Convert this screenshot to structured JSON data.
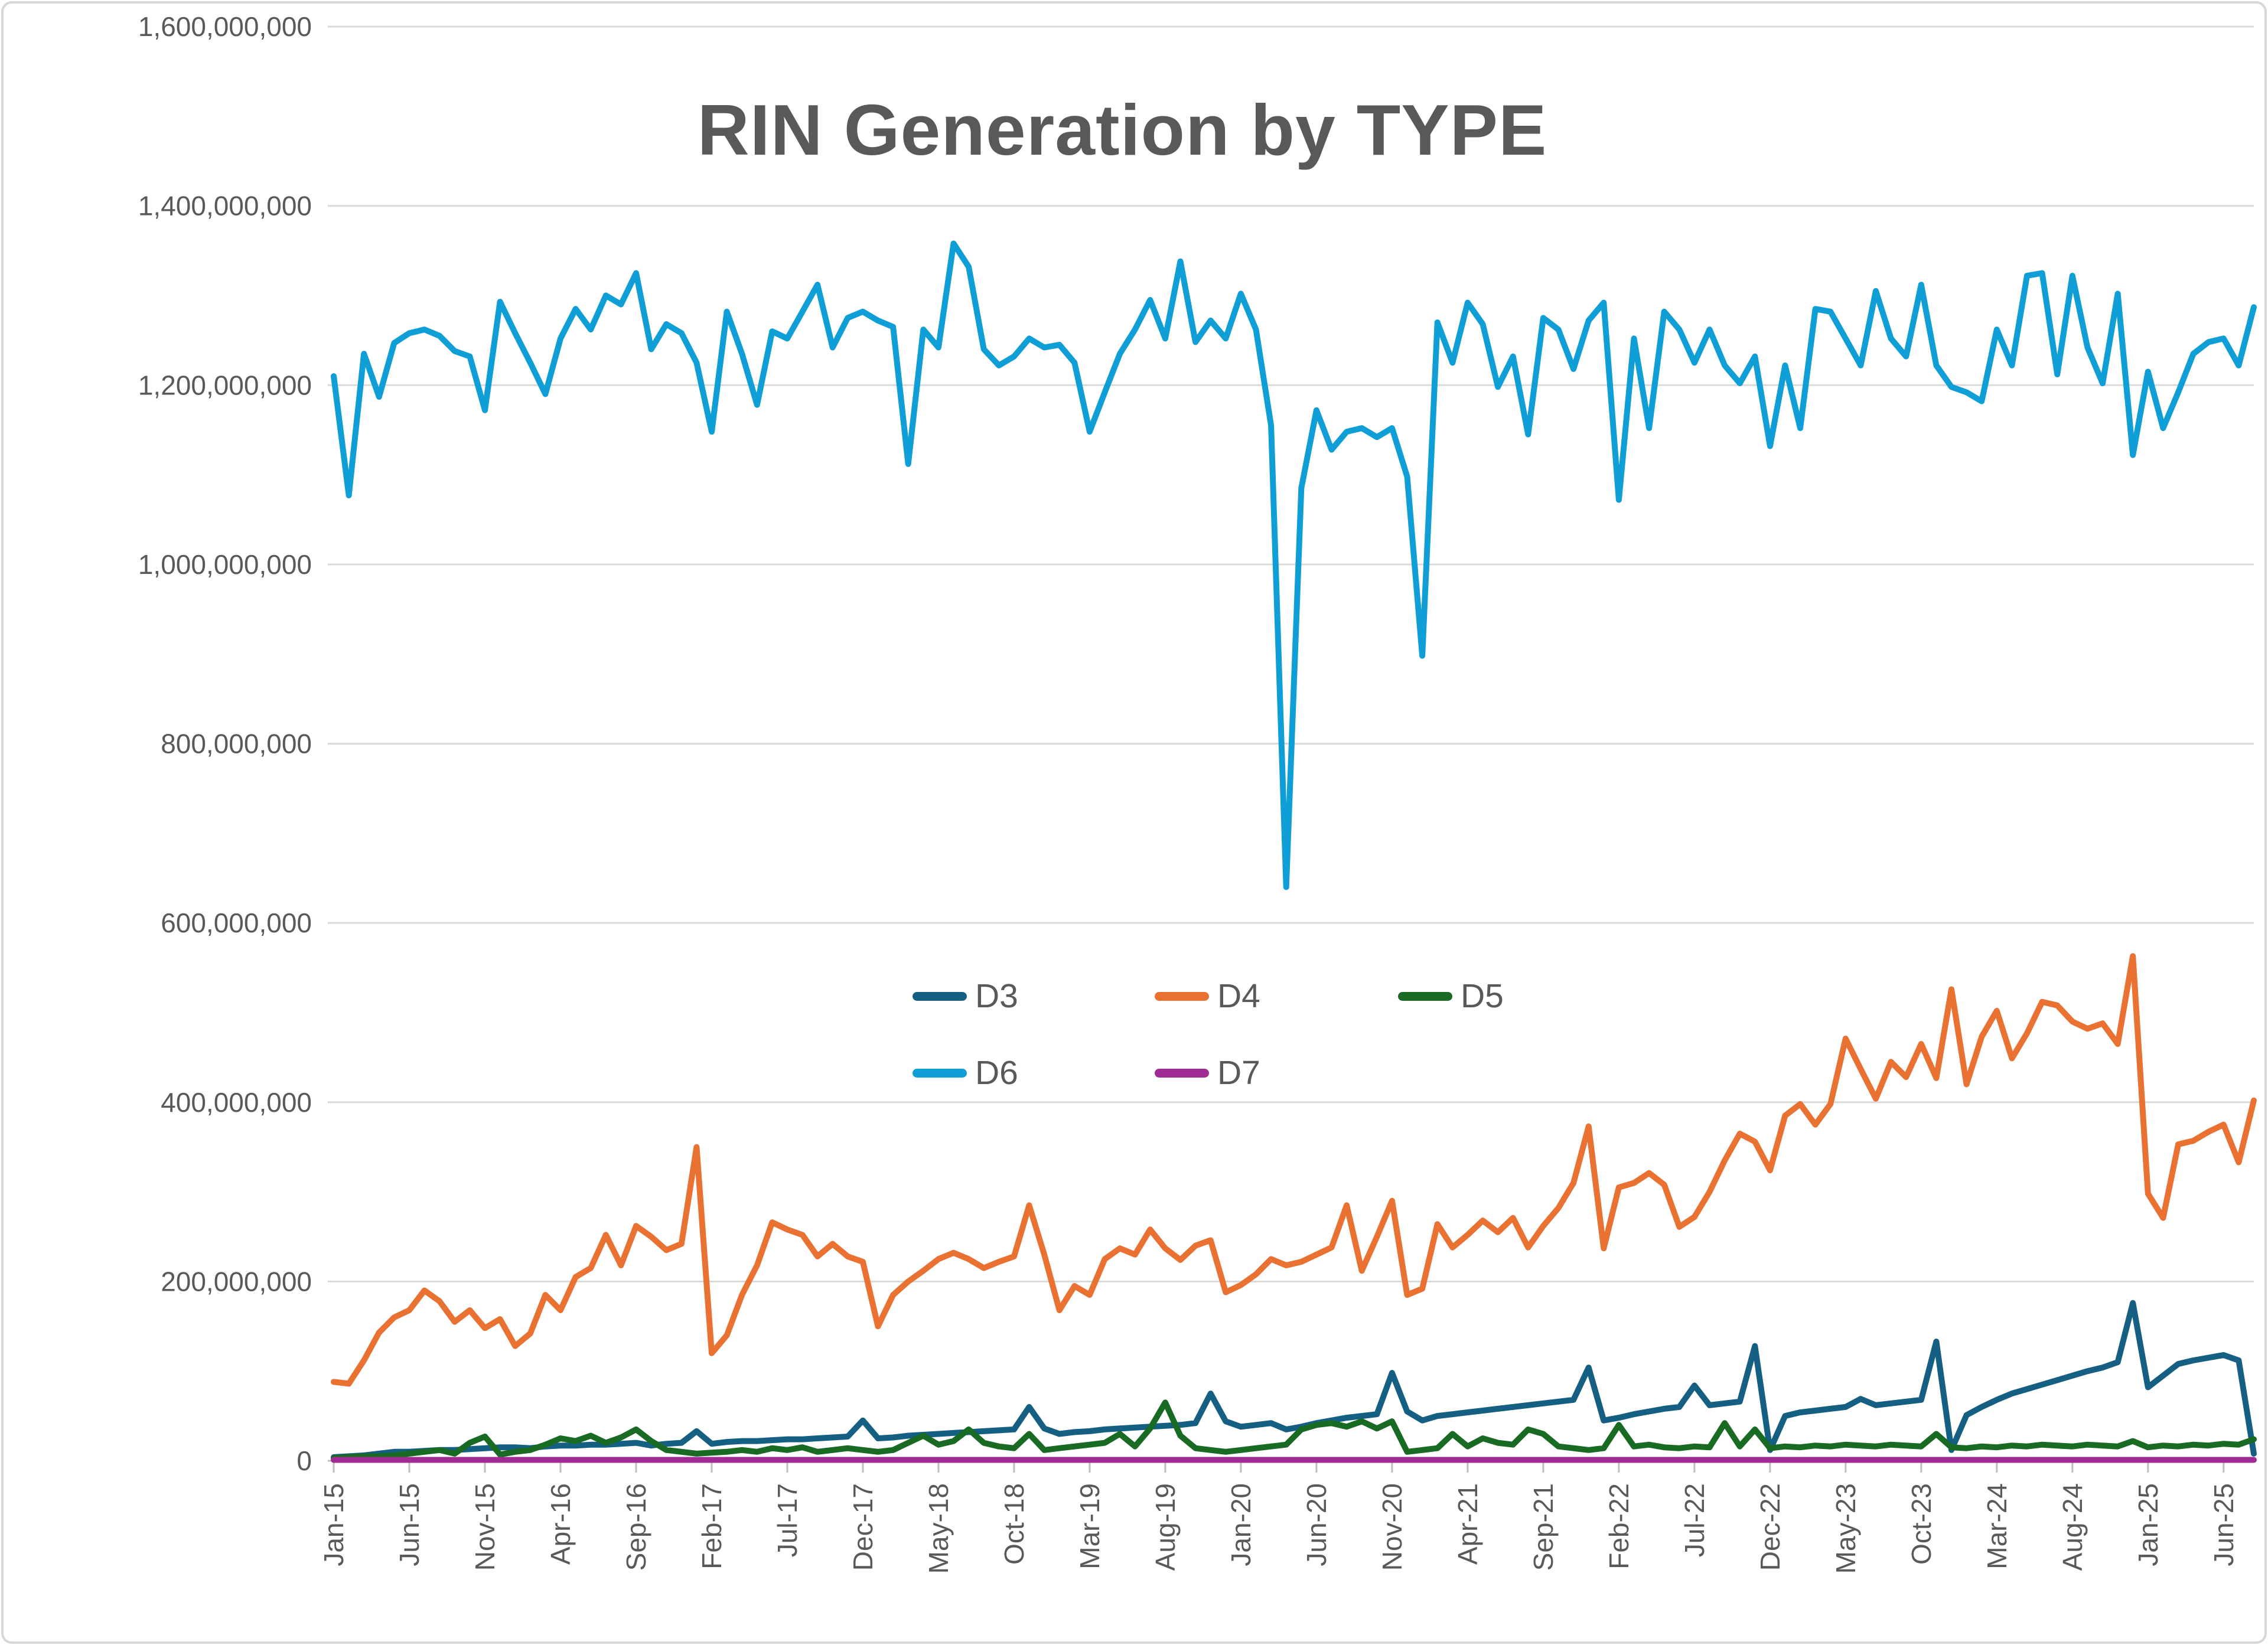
{
  "chart_data": {
    "type": "line",
    "title": "RIN Generation by TYPE",
    "unit_multiplier": 1000000,
    "y_axis": {
      "min": 0,
      "max": 1600000000,
      "tick_interval": 200000000,
      "tick_labels": [
        "0",
        "200,000,000",
        "400,000,000",
        "600,000,000",
        "800,000,000",
        "1,000,000,000",
        "1,200,000,000",
        "1,400,000,000",
        "1,600,000,000"
      ],
      "grid": true
    },
    "x_axis": {
      "first_month": "Jan-15",
      "last_month": "Aug-25",
      "months_total": 128,
      "tick_every": 5,
      "tick_labels": [
        "Jan-15",
        "Jun-15",
        "Nov-15",
        "Apr-16",
        "Sep-16",
        "Feb-17",
        "Jul-17",
        "Dec-17",
        "May-18",
        "Oct-18",
        "Mar-19",
        "Aug-19",
        "Jan-20",
        "Jun-20",
        "Nov-20",
        "Apr-21",
        "Sep-21",
        "Feb-22",
        "Jul-22",
        "Dec-22",
        "May-23",
        "Oct-23",
        "Mar-24",
        "Aug-24",
        "Jan-25",
        "Jun-25"
      ]
    },
    "legend": {
      "position": "center-middle",
      "rows": [
        [
          "D3",
          "D4",
          "D5"
        ],
        [
          "D6",
          "D7"
        ]
      ]
    },
    "series": [
      {
        "name": "D3",
        "color": "#156082",
        "values_millions": [
          4,
          5,
          6,
          8,
          10,
          10,
          11,
          12,
          12,
          13,
          14,
          15,
          15,
          14,
          16,
          17,
          17,
          18,
          18,
          19,
          20,
          17,
          19,
          20,
          33,
          19,
          21,
          22,
          22,
          23,
          24,
          24,
          25,
          26,
          27,
          45,
          25,
          26,
          28,
          29,
          30,
          31,
          32,
          33,
          34,
          35,
          60,
          36,
          30,
          32,
          33,
          35,
          36,
          37,
          38,
          39,
          40,
          42,
          75,
          44,
          38,
          40,
          42,
          35,
          38,
          42,
          45,
          48,
          50,
          52,
          98,
          55,
          45,
          50,
          52,
          54,
          56,
          58,
          60,
          62,
          64,
          66,
          68,
          104,
          45,
          48,
          52,
          55,
          58,
          60,
          84,
          62,
          64,
          66,
          128,
          12,
          50,
          54,
          56,
          58,
          60,
          69,
          62,
          64,
          66,
          68,
          133,
          12,
          51,
          60,
          68,
          75,
          80,
          85,
          90,
          95,
          100,
          104,
          110,
          176,
          82,
          95,
          108,
          112,
          115,
          118,
          112,
          8
        ]
      },
      {
        "name": "D4",
        "color": "#E97132",
        "values_millions": [
          88,
          86,
          112,
          143,
          160,
          168,
          190,
          178,
          155,
          168,
          148,
          158,
          128,
          142,
          185,
          168,
          205,
          215,
          252,
          218,
          262,
          250,
          235,
          242,
          350,
          120,
          140,
          185,
          218,
          266,
          258,
          252,
          228,
          242,
          228,
          222,
          150,
          185,
          200,
          212,
          225,
          232,
          225,
          215,
          222,
          228,
          285,
          230,
          168,
          195,
          185,
          225,
          237,
          230,
          258,
          237,
          224,
          240,
          246,
          188,
          196,
          208,
          225,
          218,
          222,
          230,
          238,
          285,
          212,
          250,
          290,
          185,
          192,
          264,
          238,
          252,
          268,
          255,
          271,
          238,
          262,
          282,
          310,
          373,
          237,
          305,
          310,
          321,
          308,
          261,
          272,
          300,
          335,
          365,
          356,
          324,
          385,
          398,
          375,
          398,
          471,
          437,
          404,
          445,
          428,
          465,
          427,
          526,
          420,
          473,
          502,
          449,
          477,
          512,
          508,
          490,
          482,
          488,
          465,
          563,
          298,
          271,
          353,
          357,
          367,
          375,
          333,
          402
        ]
      },
      {
        "name": "D5",
        "color": "#196B24",
        "values_millions": [
          3,
          4,
          5,
          5,
          6,
          8,
          10,
          12,
          8,
          20,
          27,
          7,
          10,
          12,
          18,
          25,
          22,
          28,
          20,
          26,
          35,
          22,
          12,
          10,
          8,
          9,
          10,
          12,
          10,
          14,
          12,
          15,
          10,
          12,
          14,
          12,
          10,
          12,
          20,
          28,
          18,
          22,
          35,
          20,
          16,
          14,
          30,
          12,
          14,
          16,
          18,
          20,
          30,
          16,
          36,
          65,
          28,
          14,
          12,
          10,
          12,
          14,
          16,
          18,
          35,
          40,
          42,
          38,
          44,
          36,
          44,
          10,
          12,
          14,
          30,
          16,
          25,
          20,
          18,
          35,
          30,
          16,
          14,
          12,
          14,
          40,
          16,
          18,
          15,
          14,
          16,
          15,
          42,
          16,
          35,
          14,
          16,
          15,
          17,
          16,
          18,
          17,
          16,
          18,
          17,
          16,
          30,
          15,
          14,
          16,
          15,
          17,
          16,
          18,
          17,
          16,
          18,
          17,
          16,
          22,
          15,
          17,
          16,
          18,
          17,
          19,
          18,
          24
        ]
      },
      {
        "name": "D6",
        "color": "#0F9ED5",
        "values_millions": [
          1210,
          1077,
          1235,
          1187,
          1247,
          1258,
          1262,
          1255,
          1238,
          1232,
          1172,
          1293,
          1258,
          1225,
          1190,
          1252,
          1285,
          1262,
          1300,
          1290,
          1325,
          1240,
          1268,
          1258,
          1225,
          1148,
          1282,
          1235,
          1178,
          1260,
          1252,
          1282,
          1312,
          1242,
          1275,
          1282,
          1272,
          1265,
          1112,
          1262,
          1242,
          1358,
          1332,
          1240,
          1222,
          1232,
          1252,
          1242,
          1245,
          1225,
          1148,
          1192,
          1235,
          1262,
          1295,
          1252,
          1338,
          1248,
          1272,
          1252,
          1302,
          1262,
          1155,
          640,
          1085,
          1172,
          1128,
          1148,
          1152,
          1142,
          1152,
          1098,
          898,
          1270,
          1225,
          1292,
          1268,
          1198,
          1232,
          1145,
          1275,
          1262,
          1218,
          1272,
          1292,
          1072,
          1252,
          1152,
          1282,
          1262,
          1225,
          1262,
          1222,
          1202,
          1232,
          1132,
          1222,
          1152,
          1285,
          1282,
          1252,
          1222,
          1305,
          1252,
          1232,
          1312,
          1222,
          1198,
          1192,
          1182,
          1262,
          1222,
          1322,
          1325,
          1212,
          1322,
          1242,
          1202,
          1302,
          1122,
          1215,
          1152,
          1192,
          1235,
          1248,
          1252,
          1222,
          1287
        ]
      },
      {
        "name": "D7",
        "color": "#A02B93",
        "values_millions": [
          1,
          1,
          1,
          1,
          1,
          1,
          1,
          1,
          1,
          1,
          1,
          1,
          1,
          1,
          1,
          1,
          1,
          1,
          1,
          1,
          1,
          1,
          1,
          1,
          1,
          1,
          1,
          1,
          1,
          1,
          1,
          1,
          1,
          1,
          1,
          1,
          1,
          1,
          1,
          1,
          1,
          1,
          1,
          1,
          1,
          1,
          1,
          1,
          1,
          1,
          1,
          1,
          1,
          1,
          1,
          1,
          1,
          1,
          1,
          1,
          1,
          1,
          1,
          1,
          1,
          1,
          1,
          1,
          1,
          1,
          1,
          1,
          1,
          1,
          1,
          1,
          1,
          1,
          1,
          1,
          1,
          1,
          1,
          1,
          1,
          1,
          1,
          1,
          1,
          1,
          1,
          1,
          1,
          1,
          1,
          1,
          1,
          1,
          1,
          1,
          1,
          1,
          1,
          1,
          1,
          1,
          1,
          1,
          1,
          1,
          1,
          1,
          1,
          1,
          1,
          1,
          1,
          1,
          1,
          1,
          1,
          1,
          1,
          1,
          1,
          1,
          1,
          1
        ]
      }
    ],
    "style": {
      "gridline_color": "#D9D9D9",
      "axis_color": "#BFBFBF",
      "label_color": "#595959",
      "title_color": "#595959",
      "background": "#FFFFFF"
    }
  }
}
